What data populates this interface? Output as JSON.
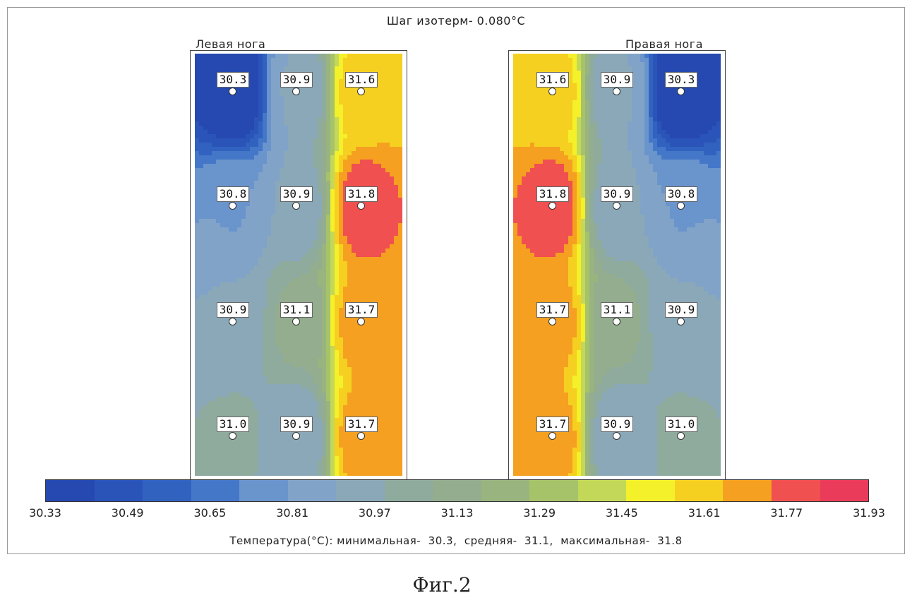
{
  "chart_data": {
    "type": "heatmap",
    "title": "Шаг изотерм- 0.080°C",
    "panels": [
      {
        "name": "Левая нога",
        "rows": [
          [
            "30.3",
            "30.9",
            "31.6"
          ],
          [
            "30.8",
            "30.9",
            "31.8"
          ],
          [
            "30.9",
            "31.1",
            "31.7"
          ],
          [
            "31.0",
            "30.9",
            "31.7"
          ]
        ]
      },
      {
        "name": "Правая нога",
        "rows": [
          [
            "31.6",
            "30.9",
            "30.3"
          ],
          [
            "31.8",
            "30.9",
            "30.8"
          ],
          [
            "31.7",
            "31.1",
            "30.9"
          ],
          [
            "31.7",
            "30.9",
            "31.0"
          ]
        ]
      }
    ],
    "colorbar": {
      "ticks": [
        "30.33",
        "30.49",
        "30.65",
        "30.81",
        "30.97",
        "31.13",
        "31.29",
        "31.45",
        "31.61",
        "31.77",
        "31.93"
      ],
      "range": [
        30.33,
        31.93
      ],
      "colors": [
        "#2549b0",
        "#2a54b8",
        "#3162c0",
        "#4577c8",
        "#6a94cc",
        "#82a3c8",
        "#8aa8b8",
        "#8fab9e",
        "#93ad8e",
        "#99b47e",
        "#a6c36a",
        "#c3d858",
        "#f4f02a",
        "#f6d020",
        "#f5a020",
        "#f05050",
        "#ea3c5a"
      ]
    },
    "stats_text": "Температура(°С): минимальная-  30.3,  средняя-  31.1,  максимальная-  31.8"
  },
  "caption": "Фиг.2"
}
